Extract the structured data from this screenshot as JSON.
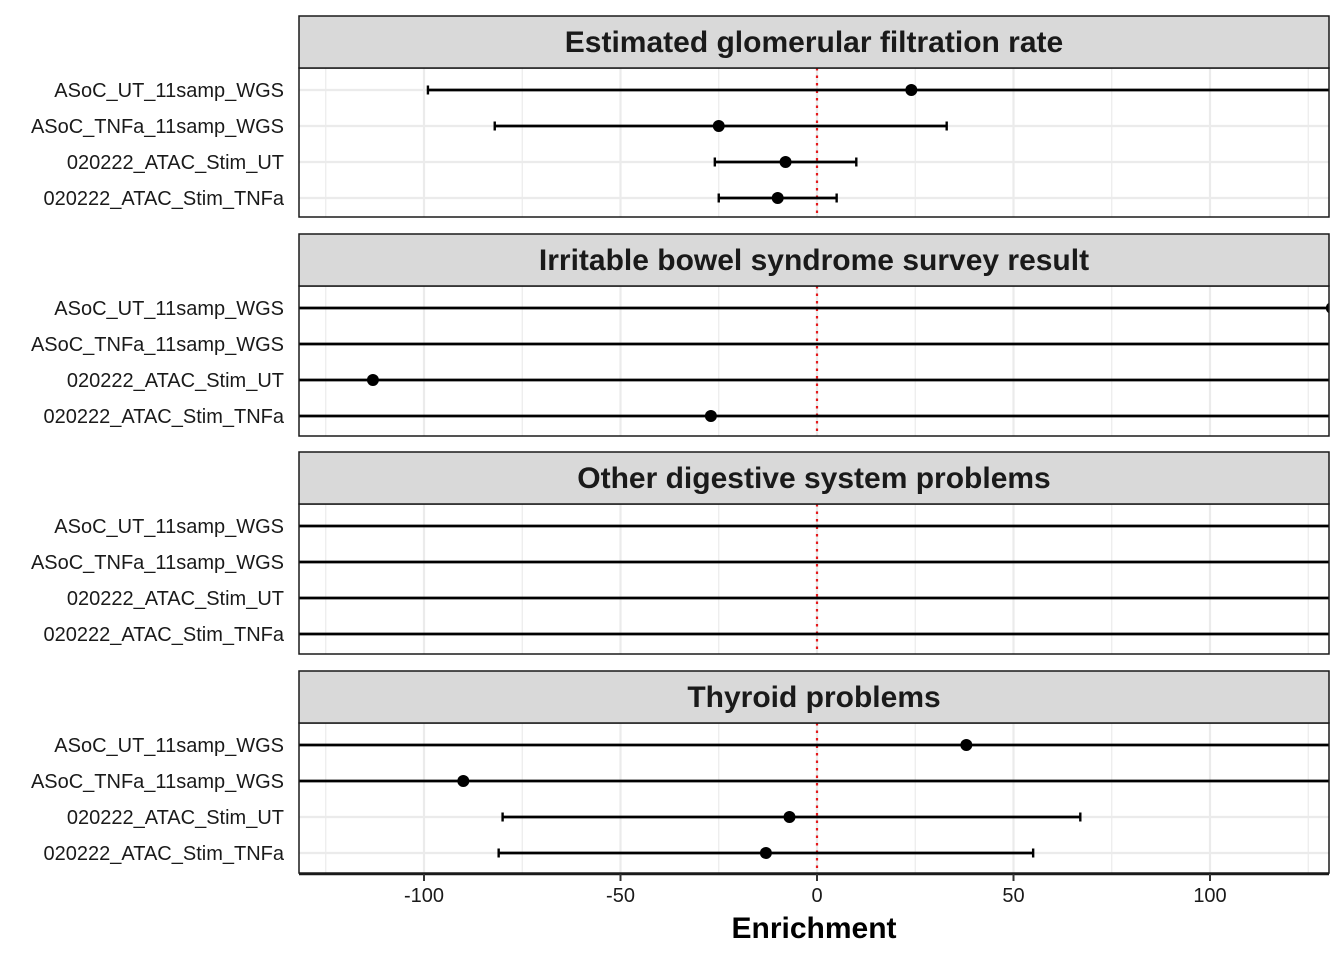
{
  "chart_data": {
    "type": "scatter",
    "subtype": "forest-plot-faceted",
    "xlabel": "Enrichment",
    "ylabel": "",
    "xlim": [
      -132,
      132
    ],
    "x_ticks": [
      -100,
      -50,
      0,
      50,
      100
    ],
    "x_tick_labels": [
      "-100",
      "-50",
      "0",
      "50",
      "100"
    ],
    "reference_line": {
      "x": 0,
      "color": "#e41a1c",
      "style": "dotted"
    },
    "grid": true,
    "legend": "none",
    "categories": [
      "ASoC_UT_11samp_WGS",
      "ASoC_TNFa_11samp_WGS",
      "020222_ATAC_Stim_UT",
      "020222_ATAC_Stim_TNFa"
    ],
    "facets": [
      {
        "title": "Estimated glomerular filtration rate",
        "rows": [
          {
            "category": "ASoC_UT_11samp_WGS",
            "estimate": 24,
            "lower": -99,
            "upper": 140
          },
          {
            "category": "ASoC_TNFa_11samp_WGS",
            "estimate": -25,
            "lower": -82,
            "upper": 33
          },
          {
            "category": "020222_ATAC_Stim_UT",
            "estimate": -8,
            "lower": -26,
            "upper": 10
          },
          {
            "category": "020222_ATAC_Stim_TNFa",
            "estimate": -10,
            "lower": -25,
            "upper": 5
          }
        ]
      },
      {
        "title": "Irritable bowel syndrome survey result",
        "rows": [
          {
            "category": "ASoC_UT_11samp_WGS",
            "estimate": 131,
            "lower": -300,
            "upper": 300
          },
          {
            "category": "ASoC_TNFa_11samp_WGS",
            "estimate": null,
            "lower": -300,
            "upper": 300
          },
          {
            "category": "020222_ATAC_Stim_UT",
            "estimate": -113,
            "lower": -300,
            "upper": 300
          },
          {
            "category": "020222_ATAC_Stim_TNFa",
            "estimate": -27,
            "lower": -300,
            "upper": 300
          }
        ]
      },
      {
        "title": "Other digestive system problems",
        "rows": [
          {
            "category": "ASoC_UT_11samp_WGS",
            "estimate": null,
            "lower": -300,
            "upper": 300
          },
          {
            "category": "ASoC_TNFa_11samp_WGS",
            "estimate": null,
            "lower": -300,
            "upper": 300
          },
          {
            "category": "020222_ATAC_Stim_UT",
            "estimate": null,
            "lower": -300,
            "upper": 300
          },
          {
            "category": "020222_ATAC_Stim_TNFa",
            "estimate": null,
            "lower": -300,
            "upper": 300
          }
        ]
      },
      {
        "title": "Thyroid problems",
        "rows": [
          {
            "category": "ASoC_UT_11samp_WGS",
            "estimate": 38,
            "lower": -300,
            "upper": 300
          },
          {
            "category": "ASoC_TNFa_11samp_WGS",
            "estimate": -90,
            "lower": -300,
            "upper": 300
          },
          {
            "category": "020222_ATAC_Stim_UT",
            "estimate": -7,
            "lower": -80,
            "upper": 67
          },
          {
            "category": "020222_ATAC_Stim_TNFa",
            "estimate": -13,
            "lower": -81,
            "upper": 55
          }
        ]
      }
    ],
    "colors": {
      "point": "#000000",
      "errorbar": "#000000",
      "strip_fill": "#d9d9d9",
      "grid": "#ebebeb",
      "reference_line": "#e41a1c"
    }
  }
}
